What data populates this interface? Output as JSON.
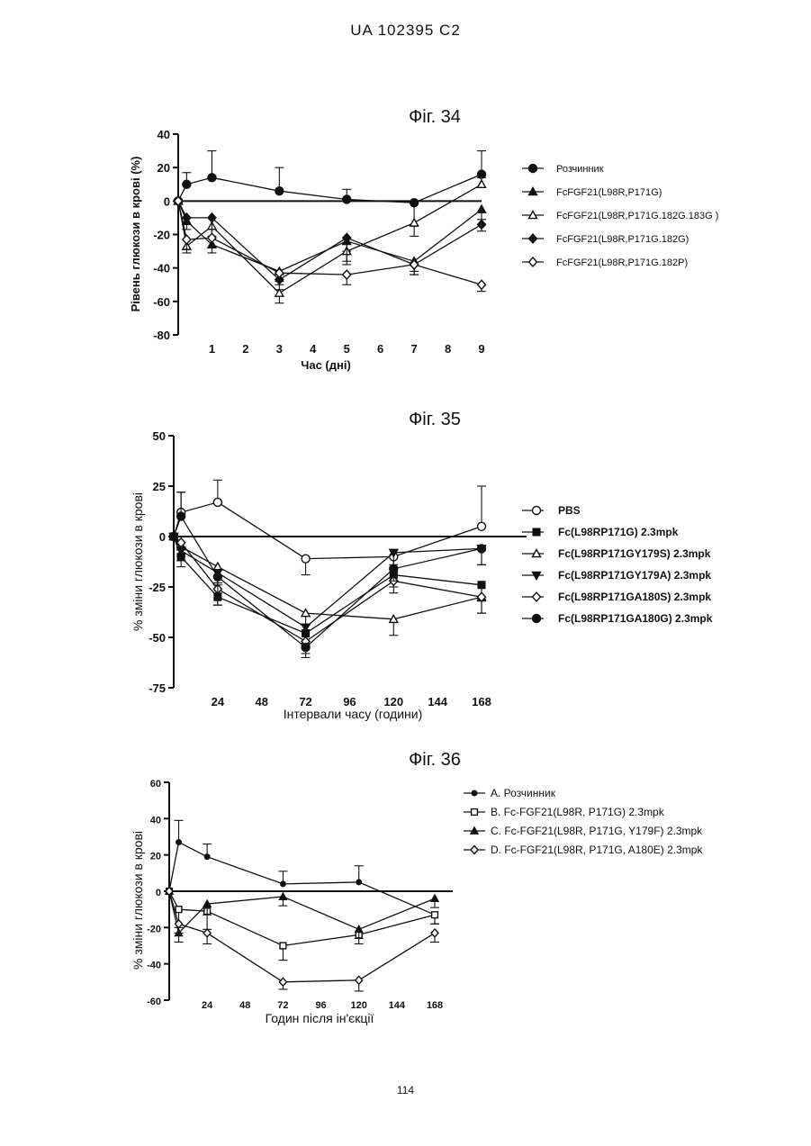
{
  "header": "UA   102395   C2",
  "page_number": "114",
  "chart_data": [
    {
      "type": "line",
      "title": "Фіг. 34",
      "xlabel": "Час (дні)",
      "ylabel": "Рівень глюкози в крові (%)",
      "xlim": [
        0,
        9
      ],
      "ylim": [
        -80,
        40
      ],
      "xticks": [
        1,
        2,
        3,
        4,
        5,
        6,
        7,
        8,
        9
      ],
      "yticks": [
        40,
        20,
        0,
        -20,
        -40,
        -60,
        -80
      ],
      "legend": "right",
      "series": [
        {
          "name": "Розчинник",
          "marker": "circle-filled",
          "points": [
            [
              0,
              0
            ],
            [
              0.25,
              10
            ],
            [
              1,
              14
            ],
            [
              3,
              6
            ],
            [
              5,
              1
            ],
            [
              7,
              -1
            ],
            [
              9,
              16
            ]
          ],
          "err": [
            0,
            7,
            16,
            14,
            6,
            14,
            14
          ]
        },
        {
          "name": "FcFGF21(L98R,P171G)",
          "marker": "triangle-filled",
          "points": [
            [
              0,
              0
            ],
            [
              0.25,
              -12
            ],
            [
              1,
              -26
            ],
            [
              3,
              -42
            ],
            [
              5,
              -24
            ],
            [
              7,
              -36
            ],
            [
              9,
              -5
            ]
          ],
          "err": [
            0,
            5,
            5,
            8,
            6,
            8,
            6
          ]
        },
        {
          "name": "FcFGF21(L98R,P171G.182G.183G )",
          "marker": "triangle-open",
          "points": [
            [
              0,
              0
            ],
            [
              0.25,
              -27
            ],
            [
              1,
              -15
            ],
            [
              3,
              -55
            ],
            [
              5,
              -30
            ],
            [
              7,
              -13
            ],
            [
              9,
              10
            ]
          ],
          "err": [
            0,
            4,
            6,
            6,
            6,
            8,
            4
          ]
        },
        {
          "name": "FcFGF21(L98R,P171G.182G)",
          "marker": "diamond-filled",
          "points": [
            [
              0,
              0
            ],
            [
              0.25,
              -10
            ],
            [
              1,
              -10
            ],
            [
              3,
              -47
            ],
            [
              5,
              -22
            ],
            [
              7,
              -38
            ],
            [
              9,
              -14
            ]
          ],
          "err": [
            0,
            4,
            12,
            6,
            16,
            4,
            4
          ]
        },
        {
          "name": "FcFGF21(L98R,P171G.182P)",
          "marker": "diamond-open",
          "points": [
            [
              0,
              0
            ],
            [
              0.25,
              -23
            ],
            [
              1,
              -22
            ],
            [
              3,
              -43
            ],
            [
              5,
              -44
            ],
            [
              7,
              -38
            ],
            [
              9,
              -50
            ]
          ],
          "err": [
            0,
            6,
            6,
            5,
            6,
            6,
            4
          ]
        }
      ]
    },
    {
      "type": "line",
      "title": "Фіг. 35",
      "xlabel": "Інтервали часу (години)",
      "ylabel": "% зміни глюкози в крові",
      "xlim": [
        0,
        168
      ],
      "ylim": [
        -75,
        50
      ],
      "xticks": [
        24,
        48,
        72,
        96,
        120,
        144,
        168
      ],
      "yticks": [
        50,
        25,
        0,
        -25,
        -50,
        -75
      ],
      "legend": "right",
      "series": [
        {
          "name": "PBS",
          "marker": "circle-open",
          "points": [
            [
              0,
              0
            ],
            [
              4,
              12
            ],
            [
              24,
              17
            ],
            [
              72,
              -11
            ],
            [
              120,
              -10
            ],
            [
              168,
              5
            ]
          ],
          "err": [
            0,
            10,
            11,
            8,
            8,
            20
          ]
        },
        {
          "name": "Fc(L98RP171G) 2.3mpk",
          "marker": "square-filled",
          "points": [
            [
              0,
              0
            ],
            [
              4,
              -10
            ],
            [
              24,
              -30
            ],
            [
              72,
              -48
            ],
            [
              120,
              -19
            ],
            [
              168,
              -24
            ]
          ],
          "err": [
            0,
            5,
            4,
            6,
            6,
            8
          ]
        },
        {
          "name": "Fc(L98RP171GY179S) 2.3mpk",
          "marker": "triangle-open",
          "points": [
            [
              0,
              0
            ],
            [
              4,
              -5
            ],
            [
              24,
              -15
            ],
            [
              72,
              -38
            ],
            [
              120,
              -41
            ],
            [
              168,
              -30
            ]
          ],
          "err": [
            0,
            5,
            8,
            6,
            8,
            8
          ]
        },
        {
          "name": "Fc(L98RP171GY179A) 2.3mpk",
          "marker": "triangle-down-filled",
          "points": [
            [
              0,
              0
            ],
            [
              4,
              -7
            ],
            [
              24,
              -18
            ],
            [
              72,
              -45
            ],
            [
              120,
              -8
            ],
            [
              168,
              -6
            ]
          ],
          "err": [
            0,
            5,
            6,
            8,
            6,
            8
          ]
        },
        {
          "name": "Fc(L98RP171GA180S) 2.3mpk",
          "marker": "diamond-open",
          "points": [
            [
              0,
              0
            ],
            [
              4,
              -3
            ],
            [
              24,
              -26
            ],
            [
              72,
              -52
            ],
            [
              120,
              -22
            ],
            [
              168,
              -30
            ]
          ],
          "err": [
            0,
            6,
            8,
            6,
            6,
            8
          ]
        },
        {
          "name": "Fc(L98RP171GA180G) 2.3mpk",
          "marker": "circle-filled",
          "points": [
            [
              0,
              0
            ],
            [
              4,
              10
            ],
            [
              24,
              -20
            ],
            [
              72,
              -55
            ],
            [
              120,
              -16
            ],
            [
              168,
              -6
            ]
          ],
          "err": [
            0,
            12,
            8,
            5,
            6,
            8
          ]
        }
      ]
    },
    {
      "type": "line",
      "title": "Фіг. 36",
      "xlabel": "Годин після ін'єкції",
      "ylabel": "% зміни глюкози в крові",
      "xlim": [
        0,
        168
      ],
      "ylim": [
        -60,
        60
      ],
      "xticks": [
        24,
        48,
        72,
        96,
        120,
        144,
        168
      ],
      "yticks": [
        60,
        40,
        20,
        0,
        -20,
        -40,
        -60
      ],
      "legend": "right",
      "series": [
        {
          "name": "A. Розчинник",
          "marker": "dot-filled",
          "points": [
            [
              0,
              0
            ],
            [
              6,
              27
            ],
            [
              24,
              19
            ],
            [
              72,
              4
            ],
            [
              120,
              5
            ],
            [
              168,
              -13
            ]
          ],
          "err": [
            0,
            12,
            7,
            7,
            9,
            5
          ]
        },
        {
          "name": "B. Fc-FGF21(L98R, P171G) 2.3mpk",
          "marker": "square-open",
          "points": [
            [
              0,
              0
            ],
            [
              6,
              -10
            ],
            [
              24,
              -11
            ],
            [
              72,
              -30
            ],
            [
              120,
              -24
            ],
            [
              168,
              -13
            ]
          ],
          "err": [
            0,
            10,
            10,
            8,
            5,
            5
          ]
        },
        {
          "name": "C. Fc-FGF21(L98R, P171G, Y179F) 2.3mpk",
          "marker": "triangle-filled",
          "points": [
            [
              0,
              0
            ],
            [
              6,
              -23
            ],
            [
              24,
              -7
            ],
            [
              72,
              -3
            ],
            [
              120,
              -21
            ],
            [
              168,
              -4
            ]
          ],
          "err": [
            0,
            5,
            6,
            5,
            5,
            5
          ]
        },
        {
          "name": "D. Fc-FGF21(L98R, P171G, A180E) 2.3mpk",
          "marker": "diamond-open",
          "points": [
            [
              0,
              0
            ],
            [
              6,
              -18
            ],
            [
              24,
              -23
            ],
            [
              72,
              -50
            ],
            [
              120,
              -49
            ],
            [
              168,
              -23
            ]
          ],
          "err": [
            0,
            5,
            6,
            4,
            6,
            5
          ]
        }
      ]
    }
  ]
}
